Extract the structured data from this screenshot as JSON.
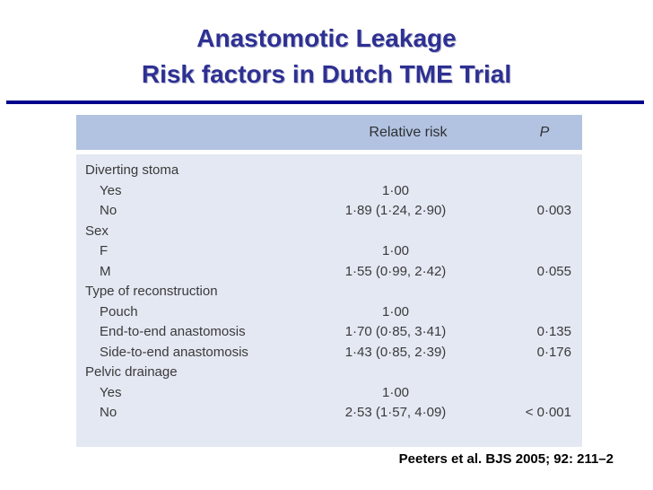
{
  "slide": {
    "title_line1": "Anastomotic Leakage",
    "title_line2": "Risk factors in Dutch TME Trial",
    "citation": "Peeters et al. BJS 2005; 92: 211–2"
  },
  "colors": {
    "title_text": "#2e3093",
    "divider": "#00008b",
    "header_bg": "#b2c3e1",
    "body_bg": "#e4e8f3",
    "table_text": "#3a3a3a"
  },
  "table": {
    "header": {
      "relative_risk": "Relative risk",
      "p": "P"
    },
    "rows": [
      {
        "label": "Diverting stoma",
        "indent": false,
        "relative_risk": "",
        "p": ""
      },
      {
        "label": "Yes",
        "indent": true,
        "relative_risk": "1·00",
        "p": ""
      },
      {
        "label": "No",
        "indent": true,
        "relative_risk": "1·89 (1·24, 2·90)",
        "p": "0·003"
      },
      {
        "label": "Sex",
        "indent": false,
        "relative_risk": "",
        "p": ""
      },
      {
        "label": "F",
        "indent": true,
        "relative_risk": "1·00",
        "p": ""
      },
      {
        "label": "M",
        "indent": true,
        "relative_risk": "1·55 (0·99, 2·42)",
        "p": "0·055"
      },
      {
        "label": "Type of reconstruction",
        "indent": false,
        "relative_risk": "",
        "p": ""
      },
      {
        "label": "Pouch",
        "indent": true,
        "relative_risk": "1·00",
        "p": ""
      },
      {
        "label": "End-to-end anastomosis",
        "indent": true,
        "relative_risk": "1·70 (0·85, 3·41)",
        "p": "0·135"
      },
      {
        "label": "Side-to-end anastomosis",
        "indent": true,
        "relative_risk": "1·43 (0·85, 2·39)",
        "p": "0·176"
      },
      {
        "label": "Pelvic drainage",
        "indent": false,
        "relative_risk": "",
        "p": ""
      },
      {
        "label": "Yes",
        "indent": true,
        "relative_risk": "1·00",
        "p": ""
      },
      {
        "label": "No",
        "indent": true,
        "relative_risk": "2·53 (1·57, 4·09)",
        "p": "< 0·001"
      }
    ]
  }
}
